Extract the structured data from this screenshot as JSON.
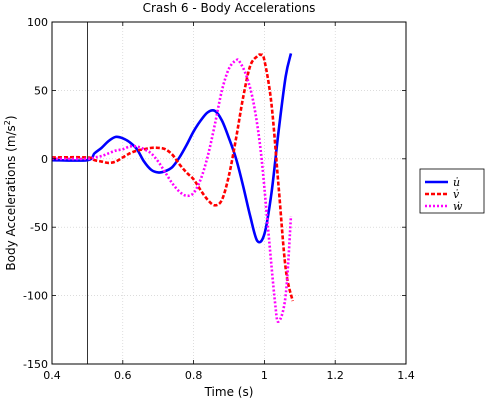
{
  "chart_data": {
    "type": "line",
    "title": "Crash 6 - Body Accelerations",
    "xlabel": "Time (s)",
    "ylabel_main": "Body Accelerations (m/s",
    "ylabel_sup": "2",
    "ylabel_end": ")",
    "xlim": [
      0.4,
      1.4
    ],
    "ylim": [
      -150,
      100
    ],
    "xticks": [
      0.4,
      0.6,
      0.8,
      1,
      1.2,
      1.4
    ],
    "xtick_labels": [
      "0.4",
      "0.6",
      "0.8",
      "1",
      "1.2",
      "1.4"
    ],
    "yticks": [
      -150,
      -100,
      -50,
      0,
      50,
      100
    ],
    "ytick_labels": [
      "-150",
      "-100",
      "-50",
      "0",
      "50",
      "100"
    ],
    "grid": true,
    "legend_placement": "outside-right",
    "vline_x": 0.5,
    "series": [
      {
        "name": "u̇",
        "color": "#0000ff",
        "dash": "solid",
        "x": [
          0.4,
          0.5,
          0.52,
          0.54,
          0.56,
          0.58,
          0.6,
          0.62,
          0.64,
          0.66,
          0.68,
          0.7,
          0.72,
          0.74,
          0.76,
          0.78,
          0.8,
          0.82,
          0.84,
          0.86,
          0.88,
          0.9,
          0.92,
          0.94,
          0.96,
          0.98,
          1.0,
          1.02,
          1.04,
          1.06,
          1.075
        ],
        "y": [
          -1,
          -1,
          4,
          8,
          13,
          16,
          15,
          12,
          7,
          -2,
          -8,
          -10,
          -9,
          -6,
          1,
          10,
          20,
          28,
          34,
          35,
          28,
          15,
          0,
          -20,
          -42,
          -60,
          -55,
          -25,
          20,
          60,
          77
        ]
      },
      {
        "name": "v̇",
        "color": "#ff0000",
        "dash": "dashed",
        "x": [
          0.4,
          0.5,
          0.52,
          0.54,
          0.56,
          0.58,
          0.6,
          0.62,
          0.64,
          0.66,
          0.68,
          0.7,
          0.72,
          0.74,
          0.76,
          0.78,
          0.8,
          0.82,
          0.84,
          0.86,
          0.88,
          0.9,
          0.92,
          0.94,
          0.96,
          0.98,
          0.99,
          1.0,
          1.02,
          1.04,
          1.06,
          1.08
        ],
        "y": [
          1,
          1,
          -1,
          -2,
          -3,
          -2,
          1,
          4,
          6,
          7,
          8,
          8,
          7,
          3,
          -4,
          -10,
          -15,
          -23,
          -30,
          -34,
          -30,
          -12,
          15,
          45,
          68,
          75,
          76,
          72,
          40,
          -20,
          -80,
          -104
        ]
      },
      {
        "name": "ẇ",
        "color": "#ff00ff",
        "dash": "dotted",
        "x": [
          0.4,
          0.5,
          0.52,
          0.54,
          0.56,
          0.58,
          0.6,
          0.62,
          0.64,
          0.66,
          0.68,
          0.7,
          0.72,
          0.74,
          0.76,
          0.78,
          0.8,
          0.82,
          0.84,
          0.86,
          0.88,
          0.9,
          0.92,
          0.93,
          0.95,
          0.97,
          0.99,
          1.01,
          1.03,
          1.04,
          1.06,
          1.075
        ],
        "y": [
          0,
          0,
          1,
          2,
          4,
          6,
          7,
          9,
          9,
          7,
          4,
          -2,
          -10,
          -18,
          -24,
          -27,
          -25,
          -15,
          2,
          25,
          50,
          66,
          72,
          71,
          60,
          40,
          5,
          -50,
          -105,
          -119,
          -100,
          -42
        ]
      }
    ]
  }
}
